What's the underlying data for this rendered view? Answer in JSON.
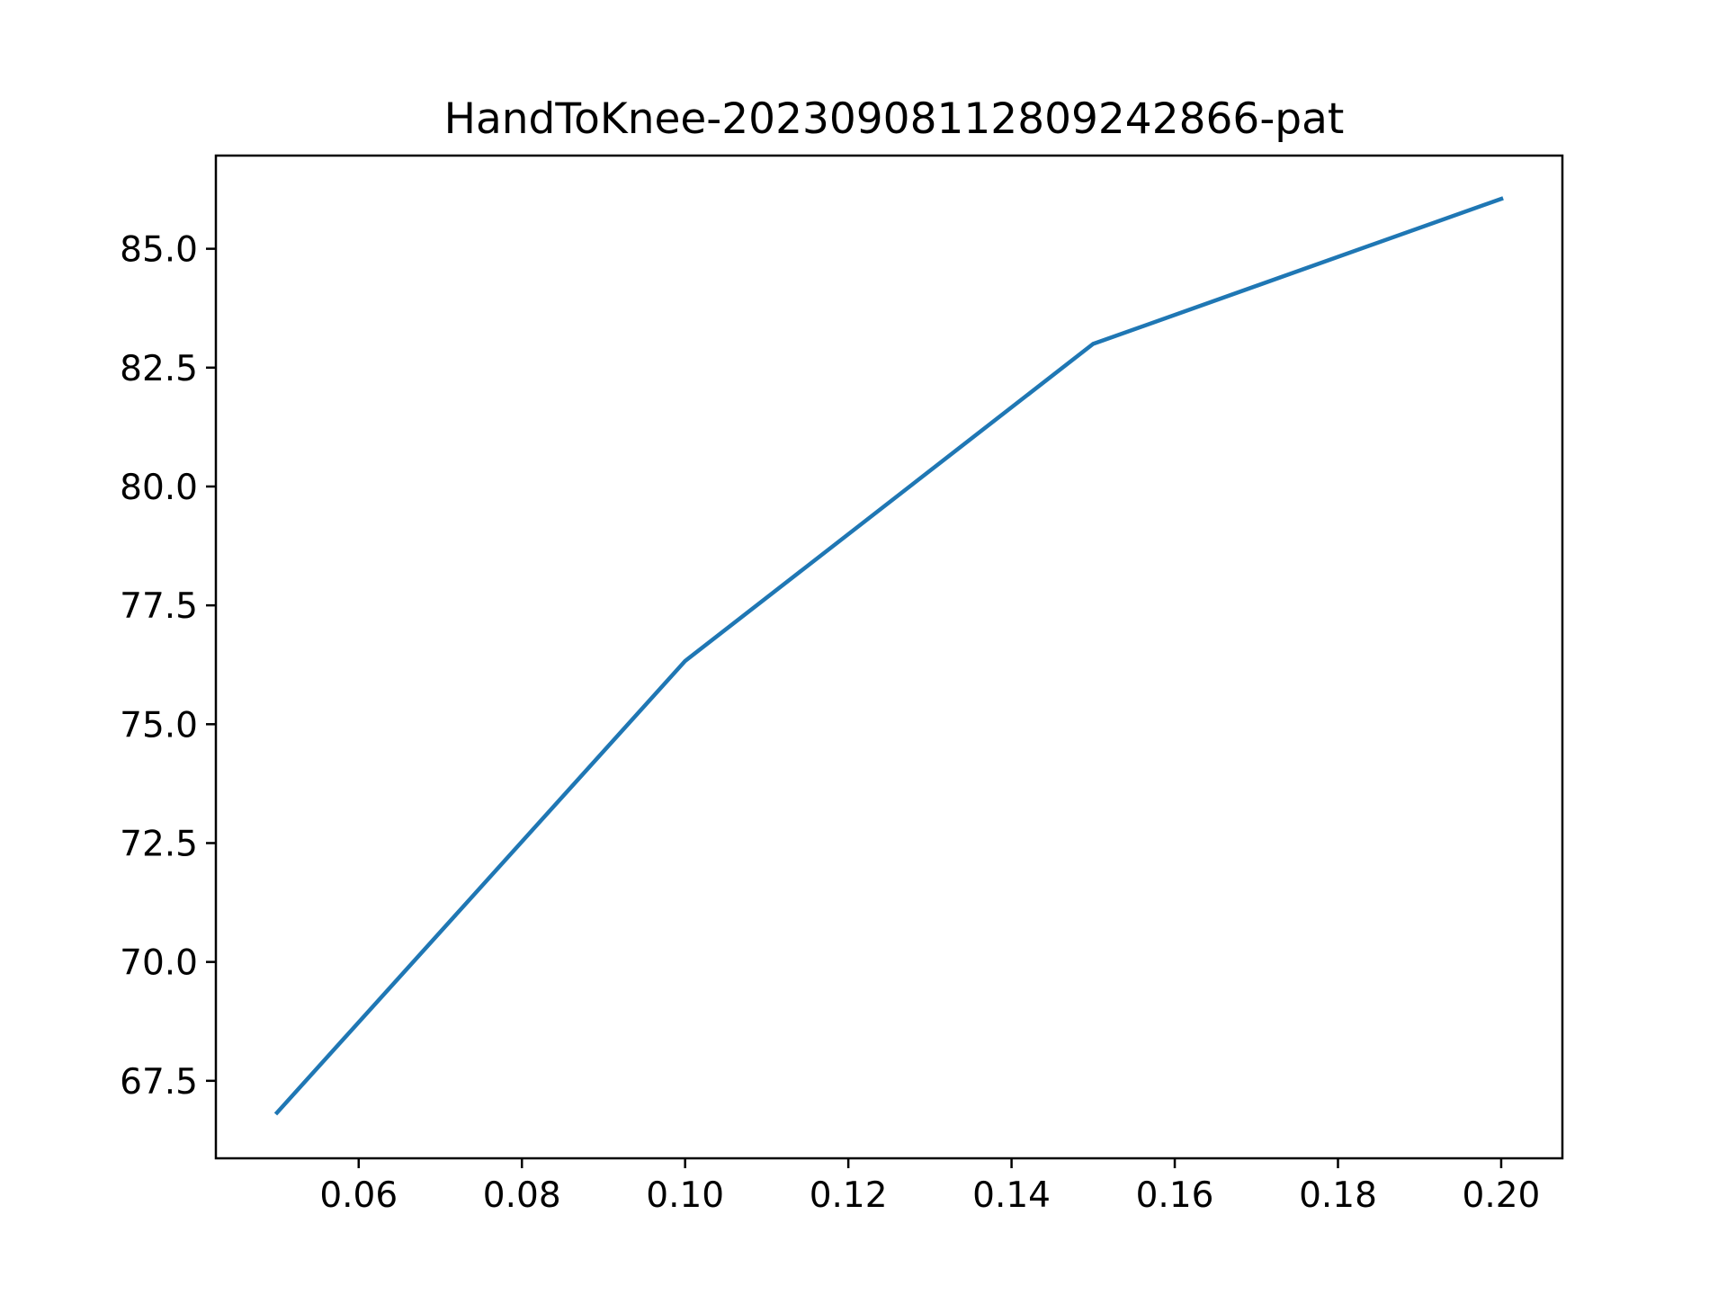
{
  "chart_data": {
    "type": "line",
    "title": "HandToKnee-20230908112809242866-pat",
    "xlabel": "",
    "ylabel": "",
    "xlim": [
      0.0425,
      0.2075
    ],
    "ylim": [
      65.87,
      86.96
    ],
    "xticks": [
      0.06,
      0.08,
      0.1,
      0.12,
      0.14,
      0.16,
      0.18,
      0.2
    ],
    "xtick_labels": [
      "0.06",
      "0.08",
      "0.10",
      "0.12",
      "0.14",
      "0.16",
      "0.18",
      "0.20"
    ],
    "yticks": [
      67.5,
      70.0,
      72.5,
      75.0,
      77.5,
      80.0,
      82.5,
      85.0
    ],
    "ytick_labels": [
      "67.5",
      "70.0",
      "72.5",
      "75.0",
      "77.5",
      "80.0",
      "82.5",
      "85.0"
    ],
    "grid": false,
    "series": [
      {
        "x": [
          0.05,
          0.1,
          0.15,
          0.2
        ],
        "y": [
          66.83,
          76.33,
          83.0,
          86.05
        ],
        "color": "#1f77b4"
      }
    ]
  }
}
